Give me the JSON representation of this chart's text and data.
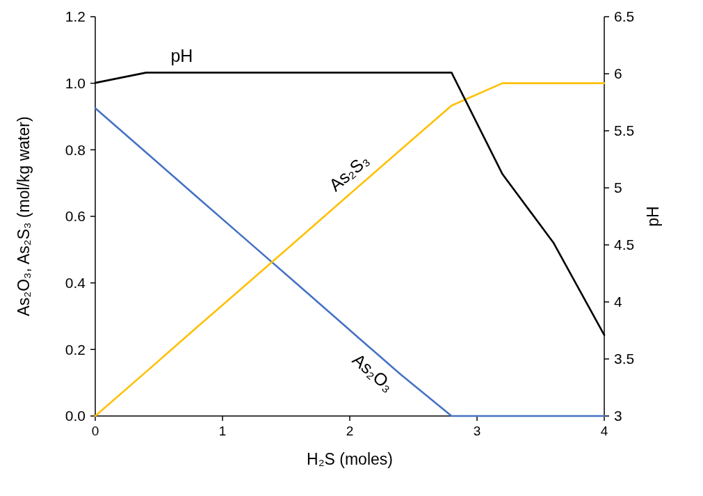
{
  "chart_data": {
    "type": "line",
    "xlabel": "H₂S (moles)",
    "ylabel": "As₂O₃, As₂S₃ (mol/kg water)",
    "y2label": "pH",
    "x": [
      0,
      0.4,
      0.8,
      1.2,
      1.6,
      2.0,
      2.4,
      2.8,
      3.2,
      3.6,
      4.0
    ],
    "series": [
      {
        "name": "As₂O₃",
        "color": "#4472c4",
        "values": [
          0.925,
          0.792,
          0.658,
          0.525,
          0.392,
          0.258,
          0.125,
          0,
          0,
          0,
          0
        ]
      },
      {
        "name": "As₂S₃",
        "color": "#ffc000",
        "values": [
          0,
          0.133,
          0.267,
          0.4,
          0.533,
          0.667,
          0.8,
          0.933,
          1.0,
          1.0,
          1.0
        ]
      },
      {
        "name": "pH",
        "color": "#000000",
        "axis": "y2",
        "values": [
          5.92,
          6.01,
          6.01,
          6.01,
          6.01,
          6.01,
          6.01,
          6.01,
          5.12,
          4.52,
          3.71
        ]
      }
    ],
    "xlim": [
      0,
      4
    ],
    "xticks": [
      0,
      1,
      2,
      3,
      4
    ],
    "ylim": [
      0,
      1.2
    ],
    "yticks": [
      {
        "value": 0,
        "label": "0.0"
      },
      0.2,
      0.4,
      0.6,
      0.8,
      {
        "value": 1,
        "label": "1.0"
      },
      1.2
    ],
    "y2lim": [
      3,
      6.5
    ],
    "y2ticks": [
      3,
      3.5,
      4,
      4.5,
      5,
      5.5,
      6,
      6.5
    ],
    "grid": false,
    "marker": "none",
    "line_style": "solid"
  }
}
